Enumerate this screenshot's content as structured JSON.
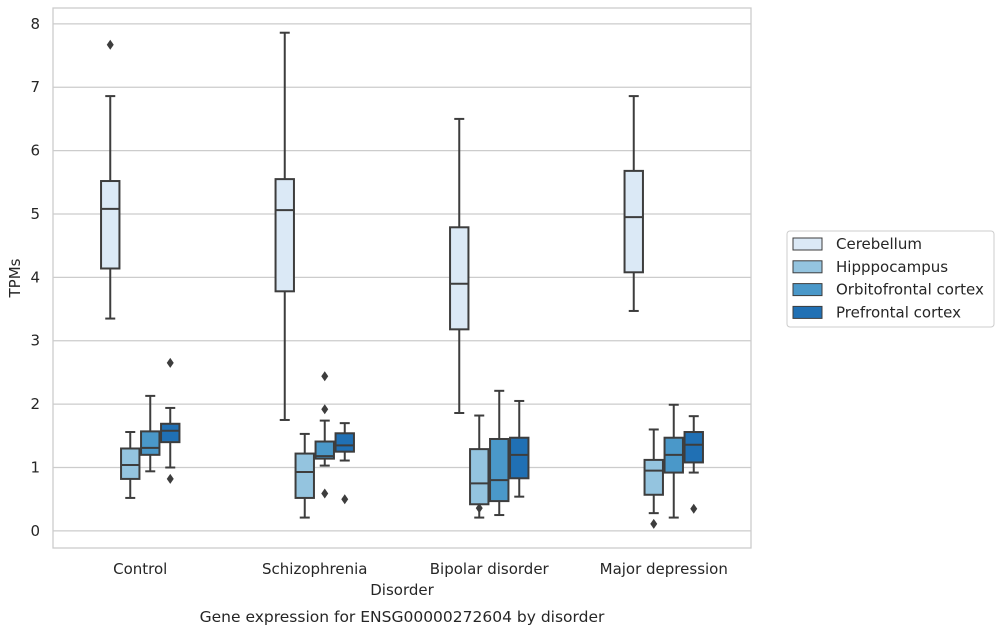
{
  "chart_data": {
    "type": "box",
    "caption": "Gene expression for ENSG00000272604 by disorder",
    "xlabel": "Disorder",
    "ylabel": "TPMs",
    "ylim": [
      -0.27,
      8.25
    ],
    "yticks": [
      0,
      1,
      2,
      3,
      4,
      5,
      6,
      7,
      8
    ],
    "categories": [
      "Control",
      "Schizophrenia",
      "Bipolar disorder",
      "Major depression"
    ],
    "grid": "horizontal",
    "legend_position": "right",
    "series": [
      {
        "name": "Cerebellum",
        "color": "#dbe9f6",
        "boxes": [
          {
            "whisker_low": 3.35,
            "q1": 4.14,
            "median": 5.08,
            "q3": 5.52,
            "whisker_high": 6.86,
            "outliers": [
              7.67
            ]
          },
          {
            "whisker_low": 1.75,
            "q1": 3.78,
            "median": 5.06,
            "q3": 5.55,
            "whisker_high": 7.86,
            "outliers": []
          },
          {
            "whisker_low": 1.86,
            "q1": 3.18,
            "median": 3.9,
            "q3": 4.79,
            "whisker_high": 6.5,
            "outliers": []
          },
          {
            "whisker_low": 3.47,
            "q1": 4.08,
            "median": 4.95,
            "q3": 5.68,
            "whisker_high": 6.86,
            "outliers": []
          }
        ]
      },
      {
        "name": "Hipppocampus",
        "color": "#94c4df",
        "boxes": [
          {
            "whisker_low": 0.52,
            "q1": 0.82,
            "median": 1.04,
            "q3": 1.3,
            "whisker_high": 1.56,
            "outliers": []
          },
          {
            "whisker_low": 0.21,
            "q1": 0.52,
            "median": 0.93,
            "q3": 1.22,
            "whisker_high": 1.53,
            "outliers": []
          },
          {
            "whisker_low": 0.21,
            "q1": 0.42,
            "median": 0.75,
            "q3": 1.29,
            "whisker_high": 1.82,
            "outliers": [
              0.36
            ]
          },
          {
            "whisker_low": 0.28,
            "q1": 0.57,
            "median": 0.95,
            "q3": 1.12,
            "whisker_high": 1.6,
            "outliers": [
              0.11
            ]
          }
        ]
      },
      {
        "name": "Orbitofrontal cortex",
        "color": "#4a98c9",
        "boxes": [
          {
            "whisker_low": 0.94,
            "q1": 1.2,
            "median": 1.31,
            "q3": 1.57,
            "whisker_high": 2.13,
            "outliers": []
          },
          {
            "whisker_low": 1.03,
            "q1": 1.14,
            "median": 1.18,
            "q3": 1.41,
            "whisker_high": 1.74,
            "outliers": [
              2.44,
              1.92,
              0.59
            ]
          },
          {
            "whisker_low": 0.25,
            "q1": 0.47,
            "median": 0.8,
            "q3": 1.45,
            "whisker_high": 2.21,
            "outliers": []
          },
          {
            "whisker_low": 0.21,
            "q1": 0.92,
            "median": 1.2,
            "q3": 1.47,
            "whisker_high": 1.99,
            "outliers": []
          }
        ]
      },
      {
        "name": "Prefrontal cortex",
        "color": "#2070b4",
        "boxes": [
          {
            "whisker_low": 1.0,
            "q1": 1.4,
            "median": 1.58,
            "q3": 1.69,
            "whisker_high": 1.94,
            "outliers": [
              2.65,
              0.82
            ]
          },
          {
            "whisker_low": 1.11,
            "q1": 1.25,
            "median": 1.35,
            "q3": 1.54,
            "whisker_high": 1.7,
            "outliers": [
              0.5
            ]
          },
          {
            "whisker_low": 0.54,
            "q1": 0.83,
            "median": 1.2,
            "q3": 1.47,
            "whisker_high": 2.05,
            "outliers": []
          },
          {
            "whisker_low": 0.92,
            "q1": 1.08,
            "median": 1.36,
            "q3": 1.56,
            "whisker_high": 1.81,
            "outliers": [
              0.35
            ]
          }
        ]
      }
    ]
  }
}
